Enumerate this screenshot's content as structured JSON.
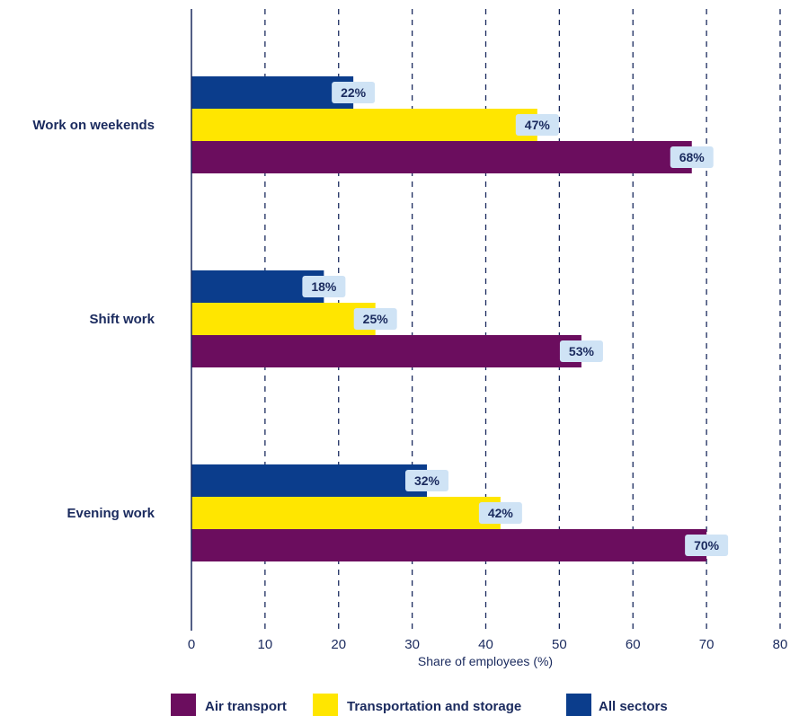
{
  "chart_data": {
    "type": "bar",
    "orientation": "horizontal",
    "categories": [
      "Work on weekends",
      "Shift work",
      "Evening work"
    ],
    "series": [
      {
        "name": "All sectors",
        "values": [
          22,
          18,
          32
        ],
        "color": "#0b3d8c"
      },
      {
        "name": "Transportation and storage",
        "values": [
          47,
          25,
          42
        ],
        "color": "#ffe600"
      },
      {
        "name": "Air transport",
        "values": [
          68,
          53,
          70
        ],
        "color": "#6b0d5e"
      }
    ],
    "data_label_suffix": "%",
    "xlabel": "Share of employees (%)",
    "ylabel": "",
    "xlim": [
      0,
      80
    ],
    "xticks": [
      0,
      10,
      20,
      30,
      40,
      50,
      60,
      70,
      80
    ],
    "grid": "vertical-dashed",
    "legend": {
      "position": "bottom",
      "order": [
        "Air transport",
        "Transportation and storage",
        "All sectors"
      ]
    },
    "colors": {
      "axis": "#1a2a5e",
      "grid": "#1a2a5e",
      "label_box": "#cfe3f5"
    }
  }
}
